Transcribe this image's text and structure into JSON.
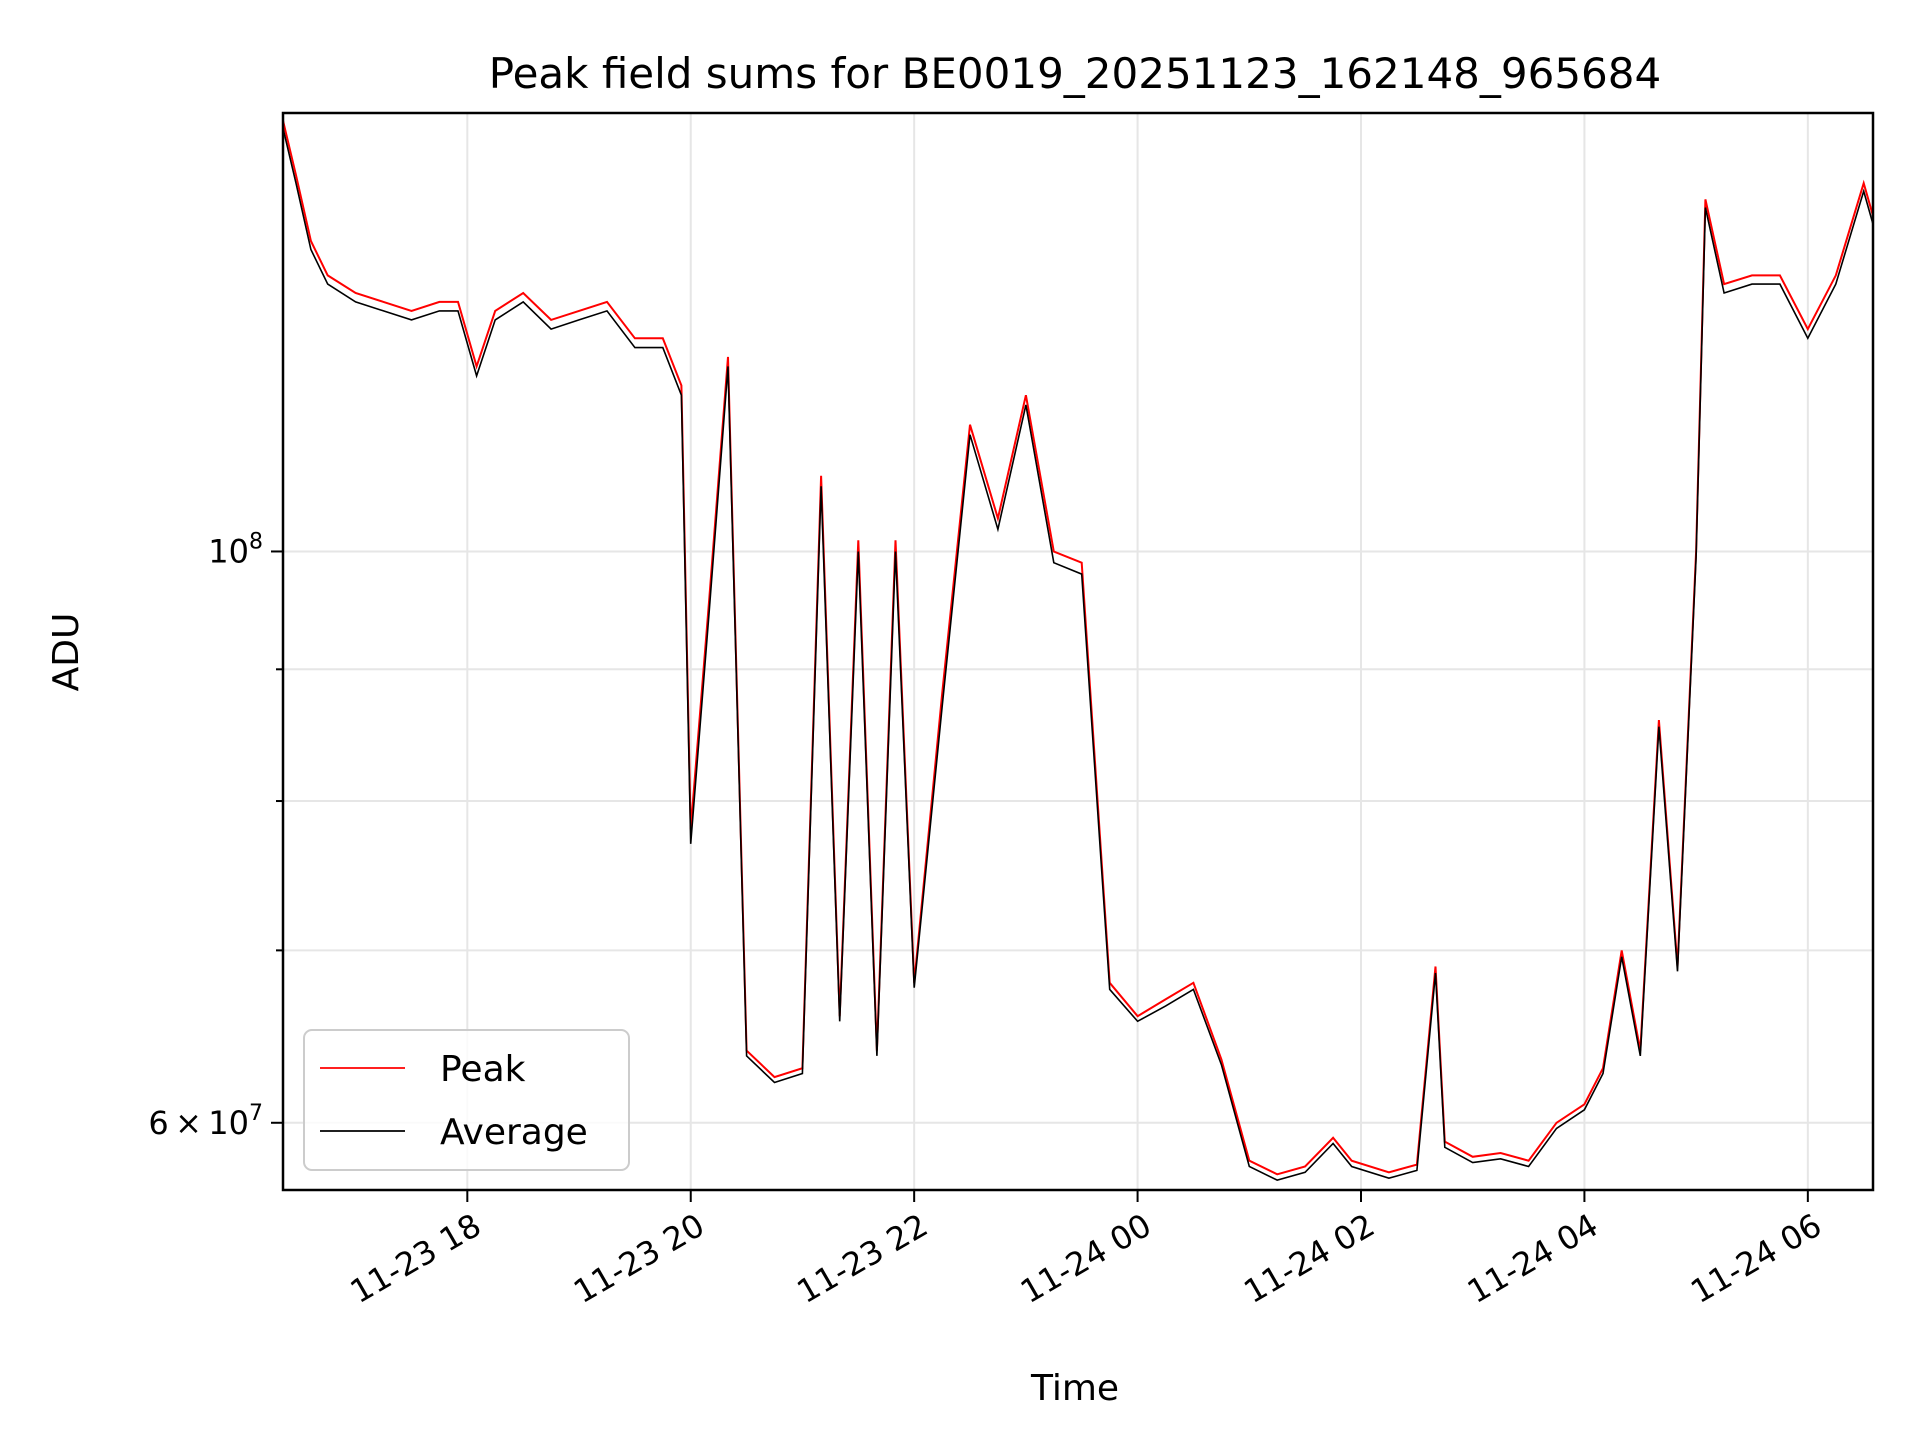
{
  "chart_data": {
    "type": "line",
    "title": "Peak field sums for BE0019_20251123_162148_965684",
    "xlabel": "Time",
    "ylabel": "ADU",
    "yscale": "log",
    "grid": true,
    "legend_position": "lower-left",
    "xlim": [
      "2025-11-23 16:21",
      "2025-11-24 06:35"
    ],
    "ylim": [
      56500000,
      148000000
    ],
    "x_ticks": [
      {
        "value": "2025-11-23 18:00",
        "label": "11-23 18"
      },
      {
        "value": "2025-11-23 20:00",
        "label": "11-23 20"
      },
      {
        "value": "2025-11-23 22:00",
        "label": "11-23 22"
      },
      {
        "value": "2025-11-24 00:00",
        "label": "11-24 00"
      },
      {
        "value": "2025-11-24 02:00",
        "label": "11-24 02"
      },
      {
        "value": "2025-11-24 04:00",
        "label": "11-24 04"
      },
      {
        "value": "2025-11-24 06:00",
        "label": "11-24 06"
      }
    ],
    "y_ticks_major": [
      {
        "value": 60000000,
        "base": "6 × 10",
        "exp": "7"
      },
      {
        "value": 100000000,
        "base": "10",
        "exp": "8"
      }
    ],
    "y_ticks_minor": [
      70000000,
      80000000,
      90000000
    ],
    "series": [
      {
        "name": "Peak",
        "color": "#ff0000"
      },
      {
        "name": "Average",
        "color": "#000000"
      }
    ],
    "x": [
      "2025-11-23 16:21",
      "2025-11-23 16:28",
      "2025-11-23 16:36",
      "2025-11-23 16:45",
      "2025-11-23 17:00",
      "2025-11-23 17:15",
      "2025-11-23 17:30",
      "2025-11-23 17:45",
      "2025-11-23 17:55",
      "2025-11-23 18:05",
      "2025-11-23 18:15",
      "2025-11-23 18:30",
      "2025-11-23 18:45",
      "2025-11-23 19:00",
      "2025-11-23 19:15",
      "2025-11-23 19:30",
      "2025-11-23 19:45",
      "2025-11-23 19:55",
      "2025-11-23 20:00",
      "2025-11-23 20:10",
      "2025-11-23 20:20",
      "2025-11-23 20:30",
      "2025-11-23 20:45",
      "2025-11-23 21:00",
      "2025-11-23 21:10",
      "2025-11-23 21:20",
      "2025-11-23 21:30",
      "2025-11-23 21:40",
      "2025-11-23 21:50",
      "2025-11-23 22:00",
      "2025-11-23 22:15",
      "2025-11-23 22:30",
      "2025-11-23 22:45",
      "2025-11-23 23:00",
      "2025-11-23 23:15",
      "2025-11-23 23:30",
      "2025-11-23 23:45",
      "2025-11-24 00:00",
      "2025-11-24 00:15",
      "2025-11-24 00:30",
      "2025-11-24 00:45",
      "2025-11-24 01:00",
      "2025-11-24 01:15",
      "2025-11-24 01:30",
      "2025-11-24 01:45",
      "2025-11-24 01:55",
      "2025-11-24 02:15",
      "2025-11-24 02:30",
      "2025-11-24 02:40",
      "2025-11-24 02:45",
      "2025-11-24 03:00",
      "2025-11-24 03:15",
      "2025-11-24 03:30",
      "2025-11-24 03:45",
      "2025-11-24 04:00",
      "2025-11-24 04:10",
      "2025-11-24 04:20",
      "2025-11-24 04:30",
      "2025-11-24 04:40",
      "2025-11-24 04:50",
      "2025-11-24 05:00",
      "2025-11-24 05:05",
      "2025-11-24 05:15",
      "2025-11-24 05:30",
      "2025-11-24 05:45",
      "2025-11-24 06:00",
      "2025-11-24 06:15",
      "2025-11-24 06:30",
      "2025-11-24 06:35"
    ],
    "peak": [
      147000000,
      140000000,
      132000000,
      128000000,
      126000000,
      125000000,
      124000000,
      125000000,
      125000000,
      118000000,
      124000000,
      126000000,
      123000000,
      124000000,
      125000000,
      121000000,
      121000000,
      116000000,
      78000000,
      96000000,
      119000000,
      64000000,
      62500000,
      63000000,
      107000000,
      66000000,
      101000000,
      64000000,
      101000000,
      68000000,
      88000000,
      112000000,
      103000000,
      115000000,
      100000000,
      99000000,
      68000000,
      66000000,
      67000000,
      68000000,
      63500000,
      58000000,
      57300000,
      57700000,
      59200000,
      58000000,
      57400000,
      57800000,
      69000000,
      59000000,
      58200000,
      58400000,
      58000000,
      60000000,
      61000000,
      63000000,
      70000000,
      64000000,
      86000000,
      69000000,
      100000000,
      137000000,
      127000000,
      128000000,
      128000000,
      122000000,
      128000000,
      139000000,
      135000000
    ],
    "average": [
      146000000,
      139000000,
      131000000,
      127000000,
      125000000,
      124000000,
      123000000,
      124000000,
      124000000,
      117000000,
      123000000,
      125000000,
      122000000,
      123000000,
      124000000,
      120000000,
      120000000,
      115000000,
      77000000,
      95000000,
      118000000,
      63700000,
      62200000,
      62700000,
      106000000,
      65700000,
      100000000,
      63700000,
      100000000,
      67700000,
      87000000,
      111000000,
      102000000,
      114000000,
      99000000,
      98000000,
      67600000,
      65700000,
      66600000,
      67600000,
      63200000,
      57700000,
      57000000,
      57400000,
      58900000,
      57700000,
      57100000,
      57500000,
      68600000,
      58700000,
      57900000,
      58100000,
      57700000,
      59700000,
      60700000,
      62700000,
      69600000,
      63700000,
      85500000,
      68700000,
      99500000,
      136000000,
      126000000,
      127000000,
      127000000,
      121000000,
      127000000,
      138000000,
      134000000
    ]
  }
}
